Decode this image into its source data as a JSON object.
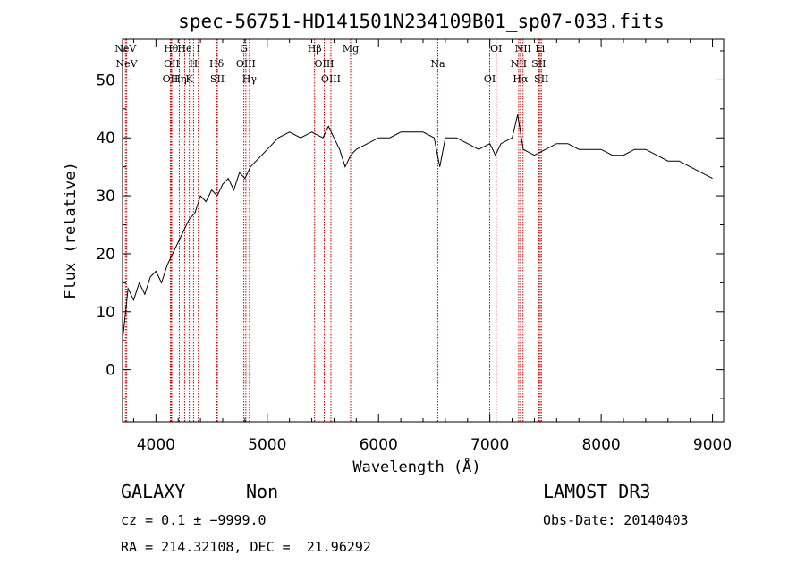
{
  "chart_data": {
    "type": "line",
    "title": "spec-56751-HD141501N234109B01_sp07-033.fits",
    "xlabel": "Wavelength (Å)",
    "ylabel": "Flux (relative)",
    "xlim": [
      3700,
      9100
    ],
    "ylim": [
      -9,
      57
    ],
    "xticks": [
      4000,
      5000,
      6000,
      7000,
      8000,
      9000
    ],
    "yticks": [
      0,
      10,
      20,
      30,
      40,
      50
    ],
    "grid": false,
    "series": [
      {
        "name": "flux",
        "x": [
          3700,
          3750,
          3800,
          3850,
          3900,
          3950,
          4000,
          4050,
          4100,
          4150,
          4200,
          4250,
          4300,
          4350,
          4400,
          4450,
          4500,
          4550,
          4600,
          4650,
          4700,
          4750,
          4800,
          4850,
          4900,
          4950,
          5000,
          5100,
          5200,
          5300,
          5400,
          5500,
          5550,
          5600,
          5650,
          5700,
          5750,
          5800,
          5900,
          6000,
          6100,
          6200,
          6300,
          6400,
          6500,
          6550,
          6600,
          6700,
          6800,
          6900,
          7000,
          7050,
          7100,
          7200,
          7250,
          7300,
          7400,
          7500,
          7600,
          7700,
          7800,
          7900,
          8000,
          8100,
          8200,
          8300,
          8400,
          8500,
          8600,
          8700,
          8800,
          8900,
          9000
        ],
        "values": [
          5,
          14,
          12,
          15,
          13,
          16,
          17,
          15,
          18,
          20,
          22,
          24,
          26,
          27,
          30,
          29,
          31,
          30,
          32,
          33,
          31,
          34,
          33,
          35,
          36,
          37,
          38,
          40,
          41,
          40,
          41,
          40,
          42,
          40,
          38,
          35,
          37,
          38,
          39,
          40,
          40,
          41,
          41,
          41,
          40,
          35,
          40,
          40,
          39,
          38,
          39,
          37,
          39,
          40,
          44,
          38,
          37,
          38,
          39,
          39,
          38,
          38,
          38,
          37,
          37,
          38,
          38,
          37,
          36,
          36,
          35,
          34,
          33
        ]
      }
    ],
    "emission_lines": [
      {
        "label": "NeV",
        "x": 3726
      },
      {
        "label": "NeV",
        "x": 3737
      },
      {
        "label": "OII",
        "x": 4130
      },
      {
        "label": "Hθ",
        "x": 4136
      },
      {
        "label": "OII",
        "x": 4142
      },
      {
        "label": "Hη",
        "x": 4210
      },
      {
        "label": "He",
        "x": 4258
      },
      {
        "label": "H",
        "x": 4338
      },
      {
        "label": "K",
        "x": 4300
      },
      {
        "label": "I",
        "x": 4381
      },
      {
        "label": "Hδ",
        "x": 4545
      },
      {
        "label": "SII",
        "x": 4552
      },
      {
        "label": "G",
        "x": 4790
      },
      {
        "label": "OIII",
        "x": 4808
      },
      {
        "label": "Hγ",
        "x": 4840
      },
      {
        "label": "Hβ",
        "x": 5425
      },
      {
        "label": "OIII",
        "x": 5512
      },
      {
        "label": "OIII",
        "x": 5572
      },
      {
        "label": "Mg",
        "x": 5749
      },
      {
        "label": "Na",
        "x": 6532
      },
      {
        "label": "OI",
        "x": 6999
      },
      {
        "label": "OI",
        "x": 7057
      },
      {
        "label": "NII",
        "x": 7259
      },
      {
        "label": "Hα",
        "x": 7275
      },
      {
        "label": "NII",
        "x": 7298
      },
      {
        "label": "SII",
        "x": 7440
      },
      {
        "label": "SII",
        "x": 7463
      },
      {
        "label": "Li",
        "x": 7451
      }
    ]
  },
  "info": {
    "class_label": "GALAXY",
    "subclass_label": "Non",
    "survey_label": "LAMOST DR3",
    "cz_text": "cz = 0.1 ± −9999.0",
    "obs_date_text": "Obs-Date: 20140403",
    "coords_text": "RA = 214.32108, DEC =  21.96292"
  },
  "colors": {
    "line_marker": "#cc0000",
    "spectrum": "#000000",
    "axes": "#000000"
  }
}
